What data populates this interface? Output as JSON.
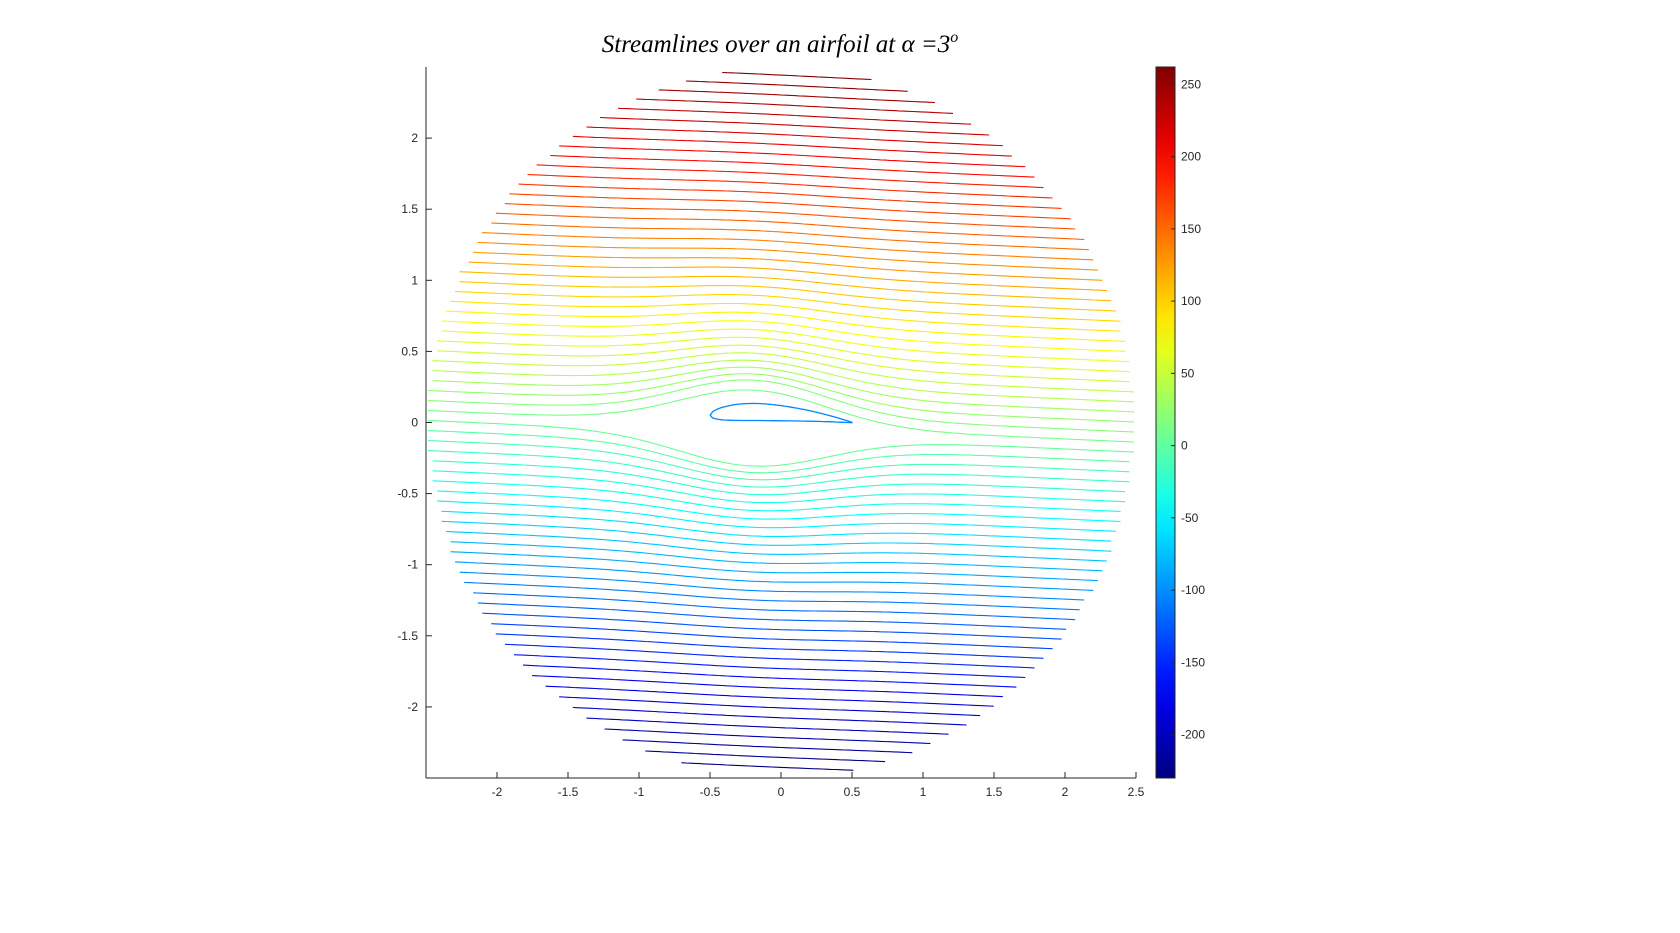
{
  "chart_data": {
    "type": "contour",
    "title": "Streamlines over an airfoil at α =3º",
    "title_parts": {
      "text": "Streamlines over an airfoil at ",
      "alpha": "α",
      "equals_value": " =3",
      "superscript": "o"
    },
    "xlabel": "",
    "ylabel": "",
    "xlim": [
      -2.5,
      2.5
    ],
    "ylim": [
      -2.5,
      2.5
    ],
    "xticks": [
      -2,
      -1.5,
      -1,
      -0.5,
      0,
      0.5,
      1,
      1.5,
      2,
      2.5
    ],
    "yticks": [
      2,
      1.5,
      1,
      0.5,
      0,
      -0.5,
      -1,
      -1.5,
      -2
    ],
    "domain": {
      "shape": "circle",
      "center": [
        0,
        0
      ],
      "radius": 2.5
    },
    "angle_of_attack_deg": 3,
    "streamlines": {
      "count": 70,
      "stream_function_range": [
        -230,
        260
      ]
    },
    "airfoil": {
      "leading_edge_x": -0.5,
      "trailing_edge_x": 0.5
    },
    "colorbar": {
      "colormap": "jet",
      "range": [
        -230,
        262
      ],
      "ticks": [
        250,
        200,
        150,
        100,
        50,
        0,
        -50,
        -100,
        -150,
        -200
      ]
    },
    "grid": false,
    "legend": "none"
  }
}
